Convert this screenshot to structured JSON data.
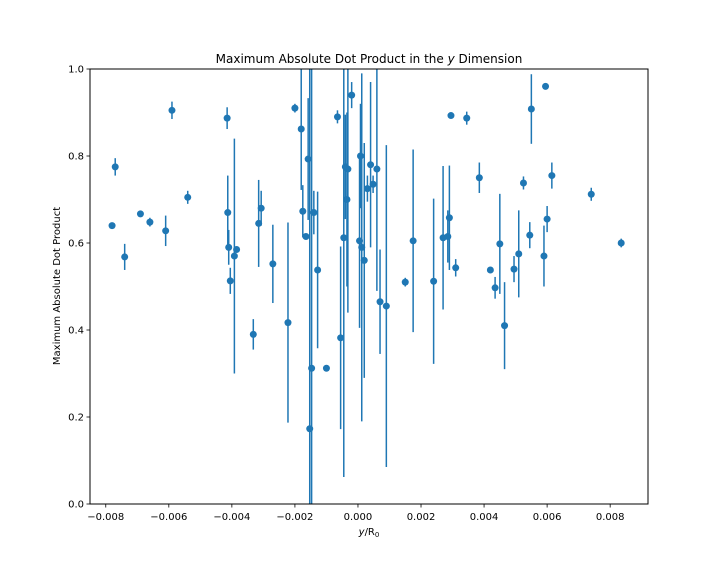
{
  "chart_data": {
    "type": "scatter",
    "title_prefix": "Maximum Absolute Dot Product in the ",
    "title_var": "y",
    "title_suffix": " Dimension",
    "xlabel_var": "y",
    "xlabel_rest": "/R",
    "xlabel_sub": "0",
    "ylabel": "Maximum Absolute Dot Product",
    "xlim": [
      -0.0085,
      0.0092
    ],
    "ylim": [
      0.0,
      1.0
    ],
    "xticks": [
      -0.008,
      -0.006,
      -0.004,
      -0.002,
      0.0,
      0.002,
      0.004,
      0.006,
      0.008
    ],
    "xtick_labels": [
      "−0.008",
      "−0.006",
      "−0.004",
      "−0.002",
      "0.000",
      "0.002",
      "0.004",
      "0.006",
      "0.008"
    ],
    "yticks": [
      0.0,
      0.2,
      0.4,
      0.6,
      0.8,
      1.0
    ],
    "ytick_labels": [
      "0.0",
      "0.2",
      "0.4",
      "0.6",
      "0.8",
      "1.0"
    ],
    "grid": false,
    "color": "#1f77b4",
    "points": [
      {
        "x": -0.0078,
        "y": 0.64,
        "err": 0.0
      },
      {
        "x": -0.0077,
        "y": 0.775,
        "err": 0.02
      },
      {
        "x": -0.0074,
        "y": 0.568,
        "err": 0.03
      },
      {
        "x": -0.0069,
        "y": 0.667,
        "err": 0.0
      },
      {
        "x": -0.0066,
        "y": 0.648,
        "err": 0.01
      },
      {
        "x": -0.0061,
        "y": 0.628,
        "err": 0.035
      },
      {
        "x": -0.0059,
        "y": 0.905,
        "err": 0.02
      },
      {
        "x": -0.0054,
        "y": 0.705,
        "err": 0.015
      },
      {
        "x": -0.00415,
        "y": 0.887,
        "err": 0.025
      },
      {
        "x": -0.00413,
        "y": 0.67,
        "err": 0.085
      },
      {
        "x": -0.0041,
        "y": 0.59,
        "err": 0.04
      },
      {
        "x": -0.00405,
        "y": 0.513,
        "err": 0.03
      },
      {
        "x": -0.00392,
        "y": 0.57,
        "err": 0.27
      },
      {
        "x": -0.00385,
        "y": 0.585,
        "err": 0.0
      },
      {
        "x": -0.00332,
        "y": 0.39,
        "err": 0.035
      },
      {
        "x": -0.00315,
        "y": 0.645,
        "err": 0.1
      },
      {
        "x": -0.00307,
        "y": 0.68,
        "err": 0.04
      },
      {
        "x": -0.0027,
        "y": 0.552,
        "err": 0.09
      },
      {
        "x": -0.00222,
        "y": 0.417,
        "err": 0.23
      },
      {
        "x": -0.002,
        "y": 0.91,
        "err": 0.01
      },
      {
        "x": -0.0018,
        "y": 0.862,
        "err": 0.14
      },
      {
        "x": -0.00175,
        "y": 0.673,
        "err": 0.06
      },
      {
        "x": -0.00165,
        "y": 0.615,
        "err": 0.0
      },
      {
        "x": -0.00158,
        "y": 0.793,
        "err": 0.14
      },
      {
        "x": -0.00153,
        "y": 0.173,
        "err": 0.9
      },
      {
        "x": -0.00147,
        "y": 0.312,
        "err": 0.7
      },
      {
        "x": -0.0014,
        "y": 0.67,
        "err": 0.05
      },
      {
        "x": -0.00128,
        "y": 0.538,
        "err": 0.18
      },
      {
        "x": -0.001,
        "y": 0.312,
        "err": 0.0
      },
      {
        "x": -0.00065,
        "y": 0.89,
        "err": 0.015
      },
      {
        "x": -0.00055,
        "y": 0.382,
        "err": 0.21
      },
      {
        "x": -0.00045,
        "y": 0.612,
        "err": 0.55
      },
      {
        "x": -0.0004,
        "y": 0.775,
        "err": 0.12
      },
      {
        "x": -0.00035,
        "y": 0.7,
        "err": 0.2
      },
      {
        "x": -0.00032,
        "y": 0.77,
        "err": 0.33
      },
      {
        "x": -0.0002,
        "y": 0.94,
        "err": 0.03
      },
      {
        "x": 5e-05,
        "y": 0.605,
        "err": 0.2
      },
      {
        "x": 8e-05,
        "y": 0.8,
        "err": 0.12
      },
      {
        "x": 0.00012,
        "y": 0.59,
        "err": 0.4
      },
      {
        "x": 0.0002,
        "y": 0.56,
        "err": 0.27
      },
      {
        "x": 0.0003,
        "y": 0.725,
        "err": 0.03
      },
      {
        "x": 0.0004,
        "y": 0.78,
        "err": 0.19
      },
      {
        "x": 0.00048,
        "y": 0.735,
        "err": 0.02
      },
      {
        "x": 0.0006,
        "y": 0.77,
        "err": 0.28
      },
      {
        "x": 0.0007,
        "y": 0.465,
        "err": 0.12
      },
      {
        "x": 0.0009,
        "y": 0.455,
        "err": 0.37
      },
      {
        "x": 0.0015,
        "y": 0.51,
        "err": 0.01
      },
      {
        "x": 0.00175,
        "y": 0.605,
        "err": 0.21
      },
      {
        "x": 0.0024,
        "y": 0.512,
        "err": 0.19
      },
      {
        "x": 0.0027,
        "y": 0.612,
        "err": 0.165
      },
      {
        "x": 0.00285,
        "y": 0.615,
        "err": 0.06
      },
      {
        "x": 0.0029,
        "y": 0.658,
        "err": 0.12
      },
      {
        "x": 0.00295,
        "y": 0.893,
        "err": 0.0
      },
      {
        "x": 0.0031,
        "y": 0.543,
        "err": 0.02
      },
      {
        "x": 0.00345,
        "y": 0.887,
        "err": 0.015
      },
      {
        "x": 0.00385,
        "y": 0.75,
        "err": 0.035
      },
      {
        "x": 0.0042,
        "y": 0.538,
        "err": 0.0
      },
      {
        "x": 0.00435,
        "y": 0.497,
        "err": 0.025
      },
      {
        "x": 0.0045,
        "y": 0.598,
        "err": 0.115
      },
      {
        "x": 0.00465,
        "y": 0.41,
        "err": 0.1
      },
      {
        "x": 0.00495,
        "y": 0.54,
        "err": 0.03
      },
      {
        "x": 0.0051,
        "y": 0.575,
        "err": 0.1
      },
      {
        "x": 0.00525,
        "y": 0.738,
        "err": 0.015
      },
      {
        "x": 0.00545,
        "y": 0.618,
        "err": 0.03
      },
      {
        "x": 0.0055,
        "y": 0.908,
        "err": 0.08
      },
      {
        "x": 0.0059,
        "y": 0.57,
        "err": 0.07
      },
      {
        "x": 0.00595,
        "y": 0.96,
        "err": 0.0
      },
      {
        "x": 0.006,
        "y": 0.655,
        "err": 0.03
      },
      {
        "x": 0.00615,
        "y": 0.755,
        "err": 0.03
      },
      {
        "x": 0.0074,
        "y": 0.712,
        "err": 0.015
      },
      {
        "x": 0.00835,
        "y": 0.6,
        "err": 0.01
      }
    ]
  }
}
